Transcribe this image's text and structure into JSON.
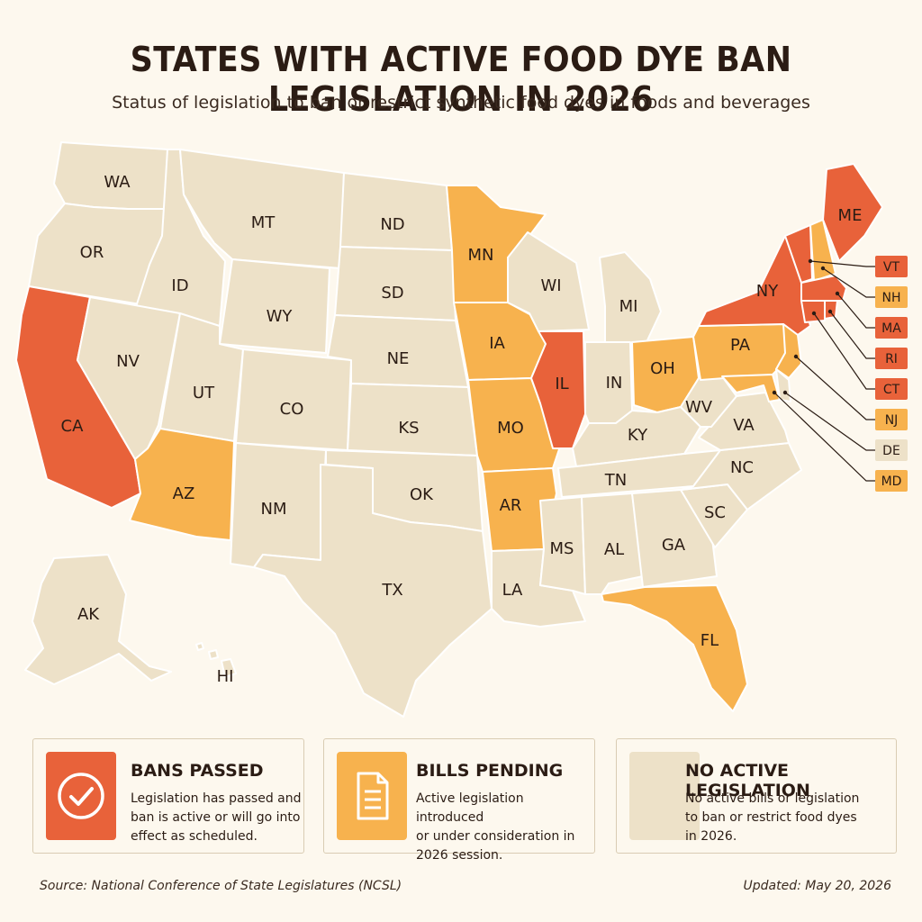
{
  "header": {
    "title": "STATES WITH ACTIVE FOOD DYE BAN LEGISLATION IN 2026",
    "subtitle": "Status of legislation to ban or restrict synthetic food dyes in foods and beverages"
  },
  "colors": {
    "bans_passed": "#e8623a",
    "bills_pending": "#f7b24e",
    "no_legislation": "#ede1c8",
    "border": "#ffffff",
    "background": "#fdf8ee"
  },
  "states": [
    {
      "code": "WA",
      "status": "none"
    },
    {
      "code": "OR",
      "status": "none"
    },
    {
      "code": "CA",
      "status": "passed"
    },
    {
      "code": "ID",
      "status": "none"
    },
    {
      "code": "NV",
      "status": "none"
    },
    {
      "code": "MT",
      "status": "none"
    },
    {
      "code": "WY",
      "status": "none"
    },
    {
      "code": "UT",
      "status": "none"
    },
    {
      "code": "AZ",
      "status": "pending"
    },
    {
      "code": "CO",
      "status": "none"
    },
    {
      "code": "NM",
      "status": "none"
    },
    {
      "code": "ND",
      "status": "none"
    },
    {
      "code": "SD",
      "status": "none"
    },
    {
      "code": "NE",
      "status": "none"
    },
    {
      "code": "KS",
      "status": "none"
    },
    {
      "code": "OK",
      "status": "none"
    },
    {
      "code": "TX",
      "status": "none"
    },
    {
      "code": "MN",
      "status": "pending"
    },
    {
      "code": "IA",
      "status": "pending"
    },
    {
      "code": "MO",
      "status": "pending"
    },
    {
      "code": "AR",
      "status": "pending"
    },
    {
      "code": "LA",
      "status": "none"
    },
    {
      "code": "WI",
      "status": "none"
    },
    {
      "code": "IL",
      "status": "passed"
    },
    {
      "code": "MI",
      "status": "none"
    },
    {
      "code": "IN",
      "status": "none"
    },
    {
      "code": "OH",
      "status": "pending"
    },
    {
      "code": "KY",
      "status": "none"
    },
    {
      "code": "TN",
      "status": "none"
    },
    {
      "code": "MS",
      "status": "none"
    },
    {
      "code": "AL",
      "status": "none"
    },
    {
      "code": "GA",
      "status": "none"
    },
    {
      "code": "FL",
      "status": "pending"
    },
    {
      "code": "SC",
      "status": "none"
    },
    {
      "code": "NC",
      "status": "none"
    },
    {
      "code": "VA",
      "status": "none"
    },
    {
      "code": "WV",
      "status": "none"
    },
    {
      "code": "PA",
      "status": "pending"
    },
    {
      "code": "NY",
      "status": "passed"
    },
    {
      "code": "VT",
      "status": "passed"
    },
    {
      "code": "NH",
      "status": "pending"
    },
    {
      "code": "ME",
      "status": "passed"
    },
    {
      "code": "MA",
      "status": "passed"
    },
    {
      "code": "RI",
      "status": "passed"
    },
    {
      "code": "CT",
      "status": "passed"
    },
    {
      "code": "NJ",
      "status": "pending"
    },
    {
      "code": "DE",
      "status": "none"
    },
    {
      "code": "MD",
      "status": "pending"
    },
    {
      "code": "AK",
      "status": "none"
    },
    {
      "code": "HI",
      "status": "none"
    }
  ],
  "callouts": [
    {
      "code": "VT",
      "status": "passed"
    },
    {
      "code": "NH",
      "status": "pending"
    },
    {
      "code": "MA",
      "status": "passed"
    },
    {
      "code": "RI",
      "status": "passed"
    },
    {
      "code": "CT",
      "status": "passed"
    },
    {
      "code": "NJ",
      "status": "pending"
    },
    {
      "code": "DE",
      "status": "none"
    },
    {
      "code": "MD",
      "status": "pending"
    }
  ],
  "legend": [
    {
      "key": "passed",
      "title": "BANS PASSED",
      "desc": [
        "Legislation has passed and",
        "ban is active or will go into",
        "effect as scheduled."
      ],
      "icon": "check-circle-icon"
    },
    {
      "key": "pending",
      "title": "BILLS PENDING",
      "desc": [
        "Active legislation introduced",
        "or under consideration in",
        "2026 session."
      ],
      "icon": "document-icon"
    },
    {
      "key": "none",
      "title": "NO ACTIVE LEGISLATION",
      "desc": [
        "No active bills or legislation",
        "to ban or restrict food dyes",
        "in 2026."
      ],
      "icon": ""
    }
  ],
  "footer": {
    "source": "Source: National Conference of State Legislatures (NCSL)",
    "updated": "Updated: May 20, 2026"
  }
}
